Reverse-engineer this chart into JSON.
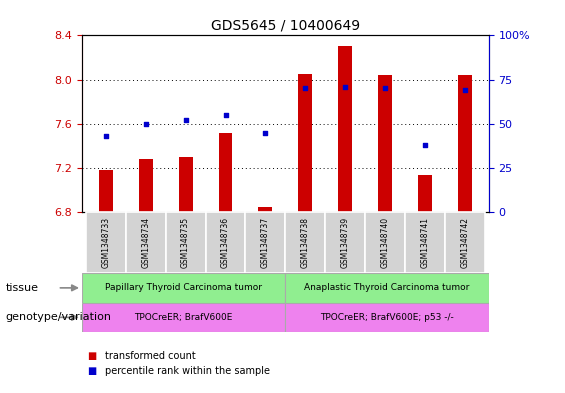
{
  "title": "GDS5645 / 10400649",
  "samples": [
    "GSM1348733",
    "GSM1348734",
    "GSM1348735",
    "GSM1348736",
    "GSM1348737",
    "GSM1348738",
    "GSM1348739",
    "GSM1348740",
    "GSM1348741",
    "GSM1348742"
  ],
  "transformed_count": [
    7.18,
    7.28,
    7.3,
    7.52,
    6.85,
    8.05,
    8.3,
    8.04,
    7.14,
    8.04
  ],
  "percentile_rank": [
    43,
    50,
    52,
    55,
    45,
    70,
    71,
    70,
    38,
    69
  ],
  "ylim_left": [
    6.8,
    8.4
  ],
  "ylim_right": [
    0,
    100
  ],
  "yticks_left": [
    6.8,
    7.2,
    7.6,
    8.0,
    8.4
  ],
  "yticks_right": [
    0,
    25,
    50,
    75,
    100
  ],
  "bar_color": "#cc0000",
  "dot_color": "#0000cc",
  "bar_bottom": 6.8,
  "tissue_groups": [
    {
      "label": "Papillary Thyroid Carcinoma tumor",
      "start": 0,
      "end": 5,
      "color": "#90ee90"
    },
    {
      "label": "Anaplastic Thyroid Carcinoma tumor",
      "start": 5,
      "end": 10,
      "color": "#90ee90"
    }
  ],
  "genotype_groups": [
    {
      "label": "TPOCreER; BrafV600E",
      "start": 0,
      "end": 5,
      "color": "#ee82ee"
    },
    {
      "label": "TPOCreER; BrafV600E; p53 -/-",
      "start": 5,
      "end": 10,
      "color": "#ee82ee"
    }
  ],
  "tissue_label": "tissue",
  "genotype_label": "genotype/variation",
  "legend_items": [
    {
      "color": "#cc0000",
      "label": "transformed count"
    },
    {
      "color": "#0000cc",
      "label": "percentile rank within the sample"
    }
  ],
  "left_tick_color": "#cc0000",
  "right_tick_color": "#0000cc",
  "grid_color": "#000000",
  "background_color": "#ffffff",
  "plot_bg_color": "#ffffff",
  "bar_width": 0.35
}
